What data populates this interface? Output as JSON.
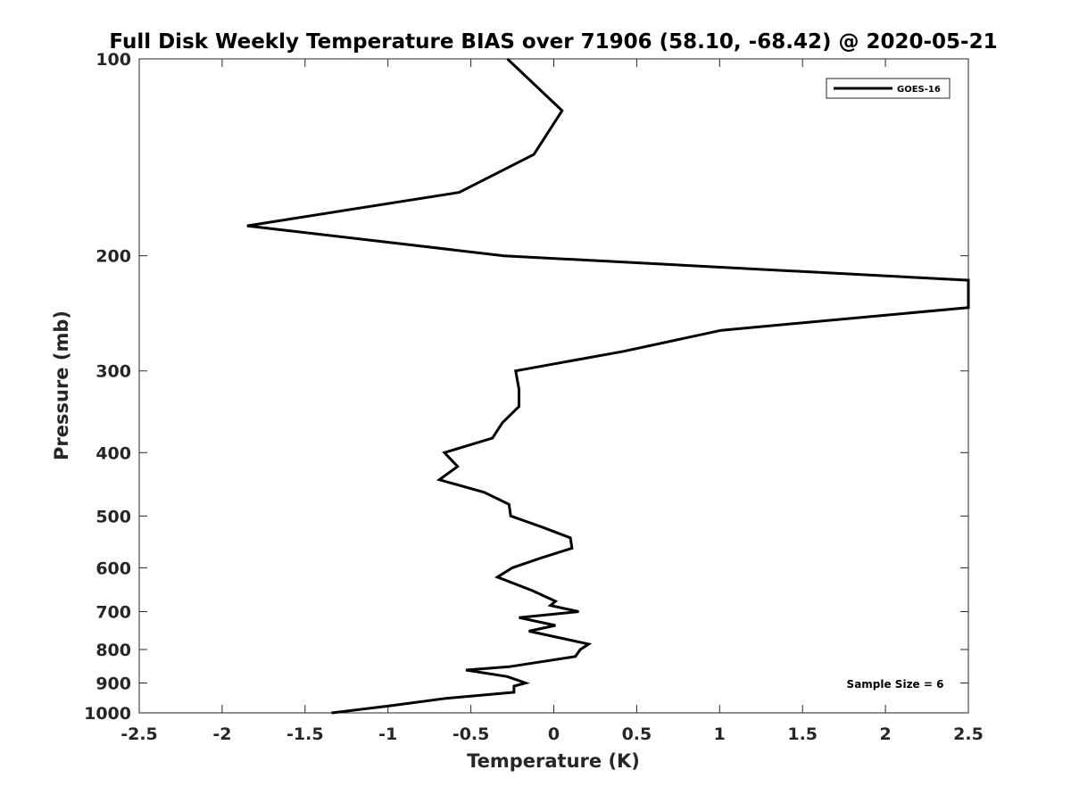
{
  "chart_data": {
    "type": "line",
    "title": "Full Disk Weekly Temperature BIAS over 71906 (58.10, -68.42) @ 2020-05-21",
    "xlabel": "Temperature (K)",
    "ylabel": "Pressure (mb)",
    "xlim": [
      -2.5,
      2.5
    ],
    "ylim": [
      100,
      1000
    ],
    "y_scale": "log",
    "y_direction": "reversed",
    "grid": false,
    "x_ticks": [
      "-2.5",
      "-2",
      "-1.5",
      "-1",
      "-0.5",
      "0",
      "0.5",
      "1",
      "1.5",
      "2",
      "2.5"
    ],
    "y_ticks": [
      "100",
      "200",
      "300",
      "400",
      "500",
      "600",
      "700",
      "800",
      "900",
      "1000"
    ],
    "legend_position": "top-right",
    "series": [
      {
        "name": "GOES-16",
        "color": "#000000",
        "points": [
          [
            -0.28,
            100
          ],
          [
            0.05,
            120
          ],
          [
            -0.12,
            140
          ],
          [
            -0.57,
            160
          ],
          [
            -1.85,
            180
          ],
          [
            -0.3,
            200
          ],
          [
            2.5,
            218
          ],
          [
            2.5,
            240
          ],
          [
            1.01,
            260
          ],
          [
            0.42,
            280
          ],
          [
            -0.23,
            300
          ],
          [
            -0.21,
            320
          ],
          [
            -0.21,
            340
          ],
          [
            -0.31,
            360
          ],
          [
            -0.37,
            380
          ],
          [
            -0.66,
            400
          ],
          [
            -0.58,
            420
          ],
          [
            -0.69,
            440
          ],
          [
            -0.42,
            460
          ],
          [
            -0.27,
            480
          ],
          [
            -0.26,
            500
          ],
          [
            -0.07,
            520
          ],
          [
            0.1,
            540
          ],
          [
            0.11,
            560
          ],
          [
            -0.08,
            580
          ],
          [
            -0.25,
            600
          ],
          [
            -0.34,
            620
          ],
          [
            -0.13,
            650
          ],
          [
            0.01,
            675
          ],
          [
            -0.02,
            685
          ],
          [
            0.15,
            700
          ],
          [
            -0.21,
            715
          ],
          [
            0.01,
            735
          ],
          [
            -0.15,
            750
          ],
          [
            0.21,
            785
          ],
          [
            0.16,
            800
          ],
          [
            0.13,
            820
          ],
          [
            -0.27,
            850
          ],
          [
            -0.53,
            860
          ],
          [
            -0.28,
            880
          ],
          [
            -0.17,
            900
          ],
          [
            -0.24,
            910
          ],
          [
            -0.24,
            930
          ],
          [
            -0.65,
            950
          ],
          [
            -0.98,
            975
          ],
          [
            -1.34,
            1000
          ]
        ]
      }
    ],
    "annotations": [
      "Sample Size = 6"
    ]
  }
}
